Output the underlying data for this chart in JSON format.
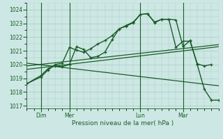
{
  "xlabel": "Pression niveau de la mer( hPa )",
  "ylim": [
    1016.8,
    1024.5
  ],
  "yticks": [
    1017,
    1018,
    1019,
    1020,
    1021,
    1022,
    1023,
    1024
  ],
  "background_color": "#cde8e4",
  "grid_color": "#a8c8c2",
  "line_color": "#1a5c28",
  "day_labels": [
    "Dim",
    "Mer",
    "Lun",
    "Mar"
  ],
  "day_positions": [
    1,
    3,
    8,
    11
  ],
  "vline_positions": [
    1,
    3,
    8,
    11
  ],
  "xlim": [
    0,
    13.5
  ],
  "series1_x": [
    0,
    1,
    1.5,
    2,
    2.5,
    3,
    3.5,
    4,
    4.5,
    5,
    5.5,
    6,
    6.5,
    7,
    7.5,
    8,
    8.5,
    9,
    9.5,
    10,
    10.5,
    11,
    11.5,
    12,
    12.5,
    13
  ],
  "series1_y": [
    1018.6,
    1019.1,
    1019.6,
    1020.0,
    1020.1,
    1021.25,
    1021.05,
    1020.9,
    1021.15,
    1021.5,
    1021.75,
    1022.1,
    1022.6,
    1022.85,
    1023.1,
    1023.65,
    1023.7,
    1023.05,
    1023.3,
    1023.3,
    1023.25,
    1021.3,
    1021.75,
    1020.05,
    1019.9,
    1020.0
  ],
  "series2_x": [
    0,
    1,
    1.5,
    2,
    2.5,
    3,
    3.5,
    4,
    4.5,
    5,
    5.5,
    6,
    6.5,
    7,
    7.5,
    8,
    8.5,
    9,
    9.5,
    10,
    10.5,
    11,
    11.5,
    12,
    12.5,
    13,
    13.5
  ],
  "series2_y": [
    1018.6,
    1019.2,
    1019.7,
    1019.9,
    1019.85,
    1020.0,
    1021.3,
    1021.1,
    1020.5,
    1020.6,
    1020.9,
    1021.8,
    1022.6,
    1022.8,
    1023.05,
    1023.65,
    1023.7,
    1023.1,
    1023.3,
    1023.3,
    1021.25,
    1021.7,
    1021.7,
    1020.0,
    1018.2,
    1017.4,
    1017.4
  ],
  "line1_x": [
    0,
    13.5
  ],
  "line1_y": [
    1019.65,
    1021.3
  ],
  "line2_x": [
    0,
    13.5
  ],
  "line2_y": [
    1019.9,
    1021.45
  ],
  "line3_x": [
    0,
    13.5
  ],
  "line3_y": [
    1020.1,
    1018.45
  ],
  "figsize": [
    3.2,
    2.0
  ],
  "dpi": 100
}
